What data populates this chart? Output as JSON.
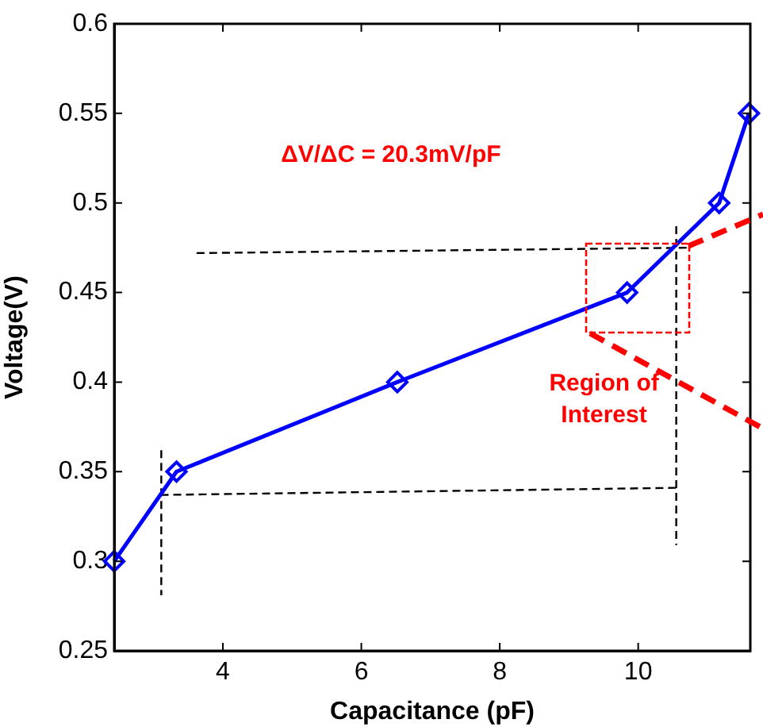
{
  "chart_data": {
    "type": "line",
    "xlabel": "Capacitance (pF)",
    "ylabel": "Voltage(V)",
    "xlim": [
      2.43,
      11.62
    ],
    "xticks": [
      4,
      6,
      8,
      10
    ],
    "ylim": [
      0.25,
      0.6
    ],
    "yticks": [
      0.25,
      0.3,
      0.35,
      0.4,
      0.45,
      0.5,
      0.55,
      0.6
    ],
    "series": [
      {
        "color": "#0000ff",
        "marker": "diamond",
        "line_style": "solid",
        "x": [
          2.43,
          3.33,
          6.52,
          9.84,
          11.17,
          11.6
        ],
        "values": [
          0.3,
          0.35,
          0.4,
          0.45,
          0.5,
          0.55
        ]
      },
      {
        "color": "#000000",
        "marker": "none",
        "line_style": "dashed",
        "x": [
          3.62,
          10.73
        ],
        "values": [
          0.472,
          0.475
        ]
      },
      {
        "color": "#000000",
        "marker": "none",
        "line_style": "dashed",
        "x": [
          3.1,
          10.58
        ],
        "values": [
          0.337,
          0.341
        ]
      },
      {
        "color": "#000000",
        "marker": "none",
        "line_style": "dashed",
        "x": [
          3.11,
          3.11
        ],
        "values": [
          0.362,
          0.281
        ]
      },
      {
        "color": "#000000",
        "marker": "none",
        "line_style": "dashed",
        "x": [
          10.55,
          10.55
        ],
        "values": [
          0.487,
          0.309
        ]
      }
    ],
    "annotations": [
      "ΔV/ΔC = 20.3mV/pF",
      "Region of Interest"
    ]
  }
}
